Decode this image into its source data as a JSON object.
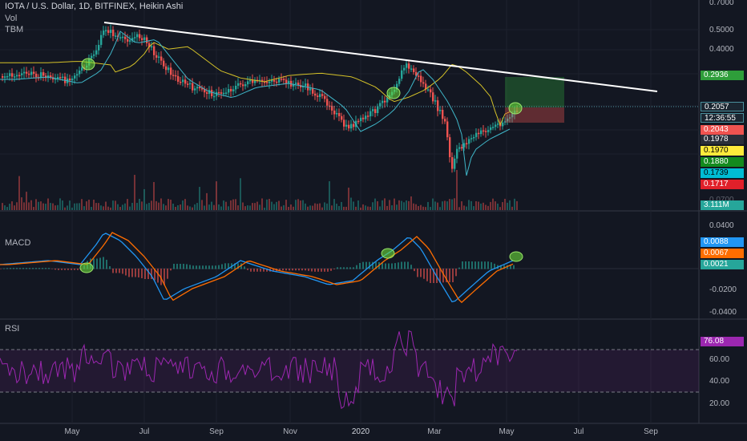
{
  "header": {
    "title": "IOTA / U.S. Dollar, 1D, BITFINEX, Heikin Ashi",
    "vol_label": "Vol",
    "tbm_label": "TBM"
  },
  "price_axis": {
    "ticks": [
      "0.7000",
      "0.5000",
      "0.4000",
      "0.0700"
    ]
  },
  "price_tags": [
    {
      "text": "0.2936",
      "color": "#2e9e3a"
    },
    {
      "text": "0.2057",
      "color": "#1b2631",
      "border": "#4a8f9c"
    },
    {
      "text": "12:36:55",
      "color": "#1b2631",
      "border": "#4a8f9c"
    },
    {
      "text": "0.2043",
      "color": "#ef5350"
    },
    {
      "text": "0.1978",
      "color": "#2a2e39"
    },
    {
      "text": "0.1970",
      "color": "#ffeb3b",
      "text_color": "#000000"
    },
    {
      "text": "0.1880",
      "color": "#138a1e"
    },
    {
      "text": "0.1739",
      "color": "#00bcd4",
      "text_color": "#000000"
    },
    {
      "text": "0.1717",
      "color": "#e0202a"
    },
    {
      "text": "3.111M",
      "color": "#26a69a"
    }
  ],
  "macd": {
    "label": "MACD",
    "axis_ticks": [
      "0.0400",
      "0.0200",
      "-0.0200",
      "-0.0400"
    ],
    "tags": [
      {
        "text": "0.0088",
        "color": "#2196f3"
      },
      {
        "text": "0.0067",
        "color": "#ff6d00"
      },
      {
        "text": "0.0021",
        "color": "#26a69a"
      }
    ]
  },
  "rsi": {
    "label": "RSI",
    "axis_ticks": [
      "60.00",
      "40.00",
      "20.00"
    ],
    "tag": {
      "text": "76.08",
      "color": "#9c27b0"
    }
  },
  "date_axis": {
    "labels": [
      "May",
      "Jul",
      "Sep",
      "Nov",
      "2020",
      "Mar",
      "May",
      "Jul",
      "Sep"
    ]
  },
  "colors": {
    "background": "#131722",
    "grid": "#1e222d",
    "up": "#26a69a",
    "down": "#ef5350",
    "trendline": "#ffffff",
    "ma_yellow": "#d4c128",
    "ma_cyan": "#3fb6c8",
    "macd_line": "#2196f3",
    "signal_line": "#ff6d00",
    "rsi_line": "#9c27b0",
    "highlight": "#6bdc3b"
  }
}
